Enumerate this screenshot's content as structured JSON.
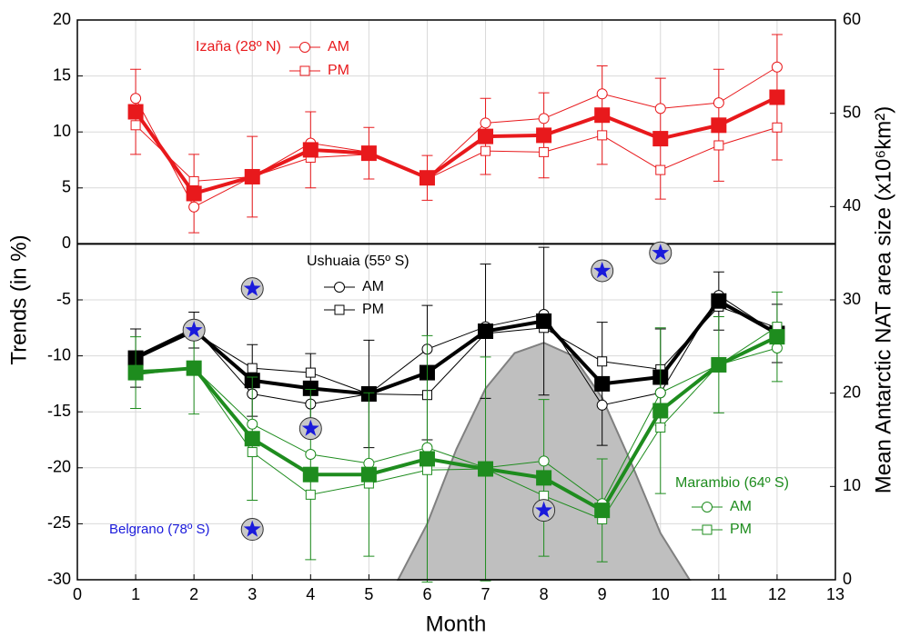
{
  "chart_data": {
    "type": "line",
    "xlabel": "Month",
    "ylabel": "Trends (in %)",
    "y2label": "Mean Antarctic NAT area size (x10⁶km²)",
    "xlim": [
      0,
      13
    ],
    "xticks": [
      0,
      1,
      2,
      3,
      4,
      5,
      6,
      7,
      8,
      9,
      10,
      11,
      12,
      13
    ],
    "ylim": [
      -30,
      20
    ],
    "yticks": [
      -30,
      -25,
      -20,
      -15,
      -10,
      -5,
      0,
      5,
      10,
      15,
      20
    ],
    "y2lim": [
      0,
      60
    ],
    "y2ticks": [
      0,
      10,
      20,
      30,
      40,
      50,
      60
    ],
    "grid": true,
    "x": [
      1,
      2,
      3,
      4,
      5,
      6,
      7,
      8,
      9,
      10,
      11,
      12
    ],
    "groups": [
      {
        "name": "Izaña (28º N)",
        "color": "#e8191c",
        "series": [
          {
            "name": "AM",
            "marker": "circle",
            "values": [
              13,
              3.3,
              6,
              9,
              8.2,
              5.9,
              10.8,
              11.2,
              13.4,
              12.1,
              12.6,
              15.8
            ]
          },
          {
            "name": "PM",
            "marker": "square",
            "values": [
              10.6,
              5.6,
              6,
              7.7,
              8,
              5.8,
              8.3,
              8.2,
              9.7,
              6.6,
              8.8,
              10.4
            ]
          },
          {
            "marker": "filled-square",
            "values": [
              11.8,
              4.5,
              6,
              8.4,
              8.1,
              5.9,
              9.6,
              9.7,
              11.5,
              9.4,
              10.6,
              13.1
            ],
            "errors": [
              3.8,
              3.5,
              3.6,
              3.4,
              2.3,
              2,
              3.4,
              3.8,
              4.4,
              5.4,
              5,
              5.6
            ]
          }
        ]
      },
      {
        "name": "Ushuaia (55º S)",
        "color": "#000000",
        "series": [
          {
            "name": "AM",
            "marker": "circle",
            "values": [
              -10,
              -7.5,
              -13.4,
              -14.3,
              -13.4,
              -9.4,
              -7.4,
              -6.3,
              -14.4,
              -13.3,
              -4.6,
              -8
            ]
          },
          {
            "name": "PM",
            "marker": "square",
            "values": [
              -10.3,
              -7.9,
              -11.1,
              -11.5,
              -13.4,
              -13.5,
              -8,
              -7.5,
              -10.5,
              -11.2,
              -5.6,
              -7.5
            ]
          },
          {
            "marker": "filled-square",
            "values": [
              -10.2,
              -7.7,
              -12.2,
              -12.9,
              -13.4,
              -11.5,
              -7.8,
              -6.9,
              -12.5,
              -11.9,
              -5.1,
              -8
            ],
            "errors": [
              2.6,
              1.6,
              3.2,
              3.1,
              4.8,
              6,
              6,
              6.6,
              5.5,
              4.3,
              2.6,
              2.6
            ]
          }
        ]
      },
      {
        "name": "Marambio (64º S)",
        "color": "#1e8c1e",
        "series": [
          {
            "name": "AM",
            "marker": "circle",
            "values": [
              -11.3,
              -11.1,
              -16.1,
              -18.8,
              -19.6,
              -18.2,
              -20,
              -19.4,
              -23.2,
              -13.3,
              -10.8,
              -9.3
            ]
          },
          {
            "name": "PM",
            "marker": "square",
            "values": [
              -11.7,
              -11.1,
              -18.6,
              -22.4,
              -21.4,
              -20.2,
              -20.1,
              -22.5,
              -24.6,
              -16.4,
              -10.8,
              -7.4
            ]
          },
          {
            "marker": "filled-square",
            "values": [
              -11.5,
              -11.1,
              -17.4,
              -20.6,
              -20.6,
              -19.2,
              -20.1,
              -20.9,
              -23.8,
              -14.9,
              -10.8,
              -8.3
            ],
            "errors": [
              3.2,
              4.1,
              5.5,
              7.6,
              7.3,
              11,
              10,
              7,
              4.6,
              7.4,
              4.3,
              4
            ]
          }
        ]
      }
    ],
    "belgrano": {
      "name": "Belgrano (78º S)",
      "color": "#1a1adb",
      "x": [
        2,
        3,
        3,
        4,
        8,
        9,
        10
      ],
      "values": [
        -7.7,
        -4,
        -25.5,
        -16.5,
        -23.8,
        -2.4,
        -0.8
      ]
    },
    "nat_area": {
      "color": "#bfbfbf",
      "axis": "y2",
      "x": [
        5.5,
        6,
        6.5,
        7,
        7.5,
        8,
        8.5,
        9,
        9.5,
        10,
        10.5
      ],
      "values": [
        0,
        6,
        14,
        20.5,
        24.3,
        25.4,
        24,
        19.5,
        12.5,
        5,
        0
      ]
    }
  }
}
